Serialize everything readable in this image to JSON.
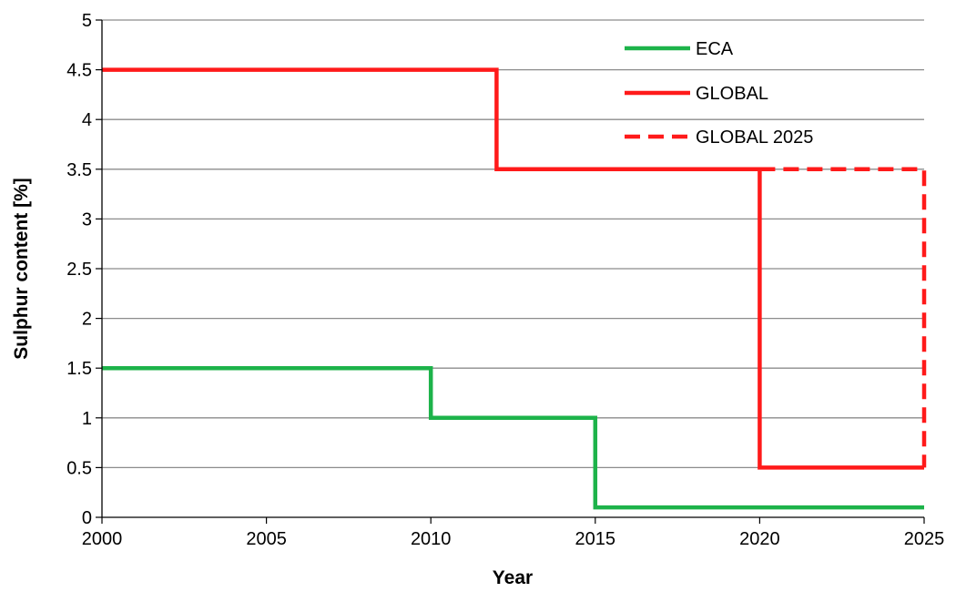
{
  "chart_data": {
    "type": "line",
    "title": "",
    "xlabel": "Year",
    "ylabel": "Sulphur content [%]",
    "xlim": [
      2000,
      2025
    ],
    "ylim": [
      0,
      5
    ],
    "xticks": [
      "2000",
      "2005",
      "2010",
      "2015",
      "2020",
      "2025"
    ],
    "yticks": [
      "0",
      "0.5",
      "1",
      "1.5",
      "2",
      "2.5",
      "3",
      "3.5",
      "4",
      "4.5",
      "5"
    ],
    "grid": "horizontal",
    "legend_position": "top-right",
    "series": [
      {
        "name": "ECA",
        "color": "#1db34a",
        "dashed": false,
        "x": [
          2000,
          2010,
          2010,
          2015,
          2015,
          2025
        ],
        "y": [
          1.5,
          1.5,
          1.0,
          1.0,
          0.1,
          0.1
        ]
      },
      {
        "name": "GLOBAL",
        "color": "#ff1a1a",
        "dashed": false,
        "x": [
          2000,
          2012,
          2012,
          2020,
          2020,
          2025
        ],
        "y": [
          4.5,
          4.5,
          3.5,
          3.5,
          0.5,
          0.5
        ]
      },
      {
        "name": "GLOBAL 2025",
        "color": "#ff1a1a",
        "dashed": true,
        "x": [
          2020,
          2025,
          2025
        ],
        "y": [
          3.5,
          3.5,
          0.5
        ]
      }
    ]
  }
}
